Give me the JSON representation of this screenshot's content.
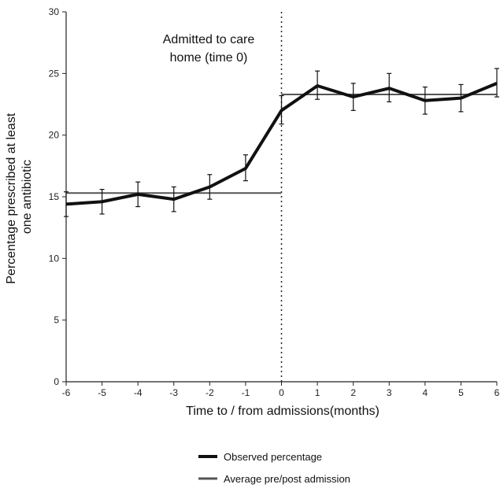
{
  "chart_data": {
    "type": "line",
    "xlabel": "Time to / from admissions(months)",
    "ylabel": "Percentage prescribed at least one antibiotic",
    "ylabel_lines": [
      "Percentage prescribed at least",
      "one antibiotic"
    ],
    "xlim": [
      -6,
      6
    ],
    "ylim": [
      0,
      30
    ],
    "x_ticks": [
      -6,
      -5,
      -4,
      -3,
      -2,
      -1,
      0,
      1,
      2,
      3,
      4,
      5,
      6
    ],
    "y_ticks": [
      0,
      5,
      10,
      15,
      20,
      25,
      30
    ],
    "grid": false,
    "legend_position": "bottom",
    "annotation": {
      "lines": [
        "Admitted to care",
        "home (time 0)"
      ],
      "x": 0
    },
    "series": [
      {
        "name": "Observed percentage",
        "color": "#111111",
        "x": [
          -6,
          -5,
          -4,
          -3,
          -2,
          -1,
          0,
          1,
          2,
          3,
          4,
          5,
          6
        ],
        "y": [
          14.4,
          14.6,
          15.2,
          14.8,
          15.8,
          17.3,
          22.0,
          24.0,
          23.1,
          23.8,
          22.8,
          23.0,
          24.2
        ],
        "err_low": [
          13.4,
          13.6,
          14.2,
          13.8,
          14.8,
          16.3,
          20.9,
          22.9,
          22.0,
          22.7,
          21.7,
          21.9,
          23.1
        ],
        "err_high": [
          15.4,
          15.6,
          16.2,
          15.8,
          16.8,
          18.4,
          23.2,
          25.2,
          24.2,
          25.0,
          23.9,
          24.1,
          25.4
        ]
      },
      {
        "name": "Average pre/post admission",
        "color": "#555555",
        "segments": [
          {
            "x": [
              -6,
              0
            ],
            "y": 15.3
          },
          {
            "x": [
              0,
              6
            ],
            "y": 23.3
          }
        ]
      }
    ]
  }
}
